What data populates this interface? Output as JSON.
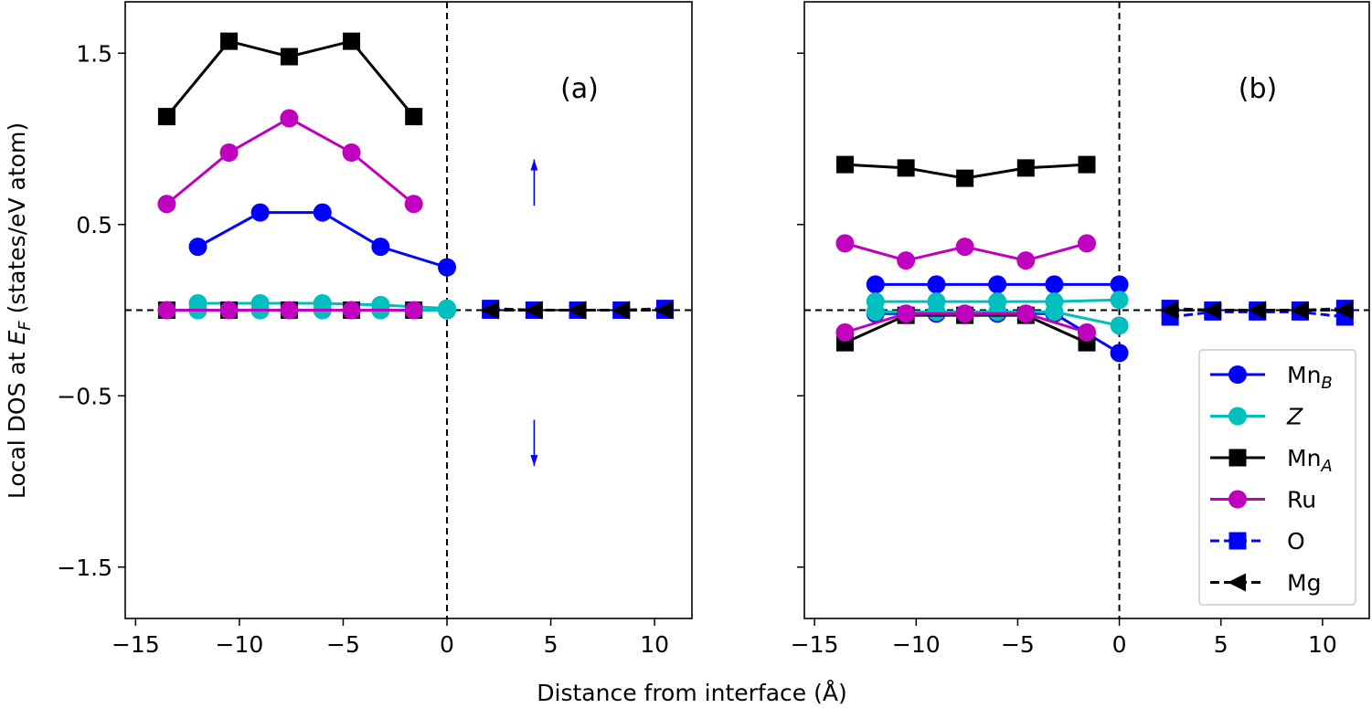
{
  "chart_data": [
    {
      "type": "line",
      "panel_label": "(a)",
      "xlabel": "Distance from interface (Å)",
      "ylabel": "Local DOS at E_F (states/eV atom)",
      "xlim": [
        -15.5,
        11.8
      ],
      "ylim": [
        -1.8,
        1.8
      ],
      "xticks": [
        -15,
        -10,
        -5,
        0,
        5,
        10
      ],
      "xtick_labels": [
        "−15",
        "−10",
        "−5",
        "0",
        "5",
        "10"
      ],
      "yticks": [
        1.5,
        0.5,
        -0.5,
        -1.5
      ],
      "ytick_labels": [
        "1.5",
        "0.5",
        "−0.5",
        "−1.5"
      ],
      "reference_lines": {
        "x": 0,
        "y": 0,
        "style": "dashed"
      },
      "annotations": [
        {
          "kind": "arrow",
          "direction": "up",
          "x": 4.2,
          "y_from": 0.61,
          "y_to": 0.88,
          "color": "#0000ff"
        },
        {
          "kind": "arrow",
          "direction": "down",
          "x": 4.2,
          "y_from": -0.64,
          "y_to": -0.91,
          "color": "#0000ff"
        }
      ],
      "series": [
        {
          "name": "Mn_B",
          "color": "#0000ff",
          "marker": "circle",
          "linestyle": "solid",
          "x": [
            -12,
            -9,
            -6,
            -3.2,
            0
          ],
          "y": [
            0.37,
            0.57,
            0.57,
            0.37,
            0.25
          ]
        },
        {
          "name": "Mn_B",
          "color": "#0000ff",
          "marker": "circle",
          "linestyle": "solid",
          "x": [
            -12,
            -9,
            -6,
            -3.2,
            0
          ],
          "y": [
            0,
            0,
            0,
            0,
            0
          ]
        },
        {
          "name": "Z",
          "color": "#00bfbf",
          "marker": "circle",
          "linestyle": "solid",
          "x": [
            -12,
            -9,
            -6,
            -3.2,
            0
          ],
          "y": [
            0.04,
            0.04,
            0.04,
            0.03,
            0.01
          ]
        },
        {
          "name": "Z",
          "color": "#00bfbf",
          "marker": "circle",
          "linestyle": "solid",
          "x": [
            -12,
            -9,
            -6,
            -3.2,
            0
          ],
          "y": [
            0,
            0,
            0,
            0,
            0
          ]
        },
        {
          "name": "Mn_A",
          "color": "#000000",
          "marker": "square",
          "linestyle": "solid",
          "x": [
            -13.5,
            -10.5,
            -7.6,
            -4.6,
            -1.6
          ],
          "y": [
            1.13,
            1.57,
            1.48,
            1.57,
            1.13
          ]
        },
        {
          "name": "Mn_A",
          "color": "#000000",
          "marker": "square",
          "linestyle": "solid",
          "x": [
            -13.5,
            -10.5,
            -7.6,
            -4.6,
            -1.6
          ],
          "y": [
            0,
            0,
            0,
            0,
            0
          ]
        },
        {
          "name": "Ru",
          "color": "#bf00bf",
          "marker": "circle",
          "linestyle": "solid",
          "x": [
            -13.5,
            -10.5,
            -7.6,
            -4.6,
            -1.6
          ],
          "y": [
            0.62,
            0.92,
            1.12,
            0.92,
            0.62
          ]
        },
        {
          "name": "Ru",
          "color": "#bf00bf",
          "marker": "circle",
          "linestyle": "solid",
          "x": [
            -13.5,
            -10.5,
            -7.6,
            -4.6,
            -1.6
          ],
          "y": [
            0,
            0,
            0,
            0,
            0
          ]
        },
        {
          "name": "O",
          "color": "#0000ff",
          "marker": "square",
          "linestyle": "dashed",
          "x": [
            2.1,
            4.2,
            6.3,
            8.4,
            10.5
          ],
          "y": [
            0.01,
            0,
            0,
            0,
            0.01
          ]
        },
        {
          "name": "O",
          "color": "#0000ff",
          "marker": "square",
          "linestyle": "dashed",
          "x": [
            2.1,
            4.2,
            6.3,
            8.4,
            10.5
          ],
          "y": [
            0,
            0,
            0,
            0,
            0
          ]
        },
        {
          "name": "Mg",
          "color": "#000000",
          "marker": "triangle-left",
          "linestyle": "dashed",
          "x": [
            2.1,
            4.2,
            6.3,
            8.4,
            10.5
          ],
          "y": [
            0,
            0,
            0,
            0,
            0
          ]
        },
        {
          "name": "Mg",
          "color": "#000000",
          "marker": "triangle-left",
          "linestyle": "dashed",
          "x": [
            2.1,
            4.2,
            6.3,
            8.4,
            10.5
          ],
          "y": [
            0,
            0,
            0,
            0,
            0
          ]
        }
      ]
    },
    {
      "type": "line",
      "panel_label": "(b)",
      "xlabel": "Distance from interface (Å)",
      "ylabel": "",
      "xlim": [
        -15.5,
        12.3
      ],
      "ylim": [
        -1.8,
        1.8
      ],
      "xticks": [
        -15,
        -10,
        -5,
        0,
        5,
        10
      ],
      "xtick_labels": [
        "−15",
        "−10",
        "−5",
        "0",
        "5",
        "10"
      ],
      "yticks": [
        1.5,
        0.5,
        -0.5,
        -1.5
      ],
      "ytick_labels": [],
      "reference_lines": {
        "x": 0,
        "y": 0,
        "style": "dashed"
      },
      "legend": {
        "placement": "lower right",
        "entries": [
          {
            "label": "Mn",
            "sub": "B",
            "italic": false,
            "color": "#0000ff",
            "marker": "circle",
            "linestyle": "solid"
          },
          {
            "label": "Z",
            "sub": "",
            "italic": true,
            "color": "#00bfbf",
            "marker": "circle",
            "linestyle": "solid"
          },
          {
            "label": "Mn",
            "sub": "A",
            "italic": false,
            "color": "#000000",
            "marker": "square",
            "linestyle": "solid"
          },
          {
            "label": "Ru",
            "sub": "",
            "italic": false,
            "color": "#bf00bf",
            "marker": "circle",
            "linestyle": "solid"
          },
          {
            "label": "O",
            "sub": "",
            "italic": false,
            "color": "#0000ff",
            "marker": "square",
            "linestyle": "dashed"
          },
          {
            "label": "Mg",
            "sub": "",
            "italic": false,
            "color": "#000000",
            "marker": "triangle-left",
            "linestyle": "dashed"
          }
        ]
      },
      "series": [
        {
          "name": "Mn_B",
          "color": "#0000ff",
          "marker": "circle",
          "linestyle": "solid",
          "x": [
            -12,
            -9,
            -6,
            -3.2,
            0
          ],
          "y": [
            0.15,
            0.15,
            0.15,
            0.15,
            0.15
          ]
        },
        {
          "name": "Mn_B",
          "color": "#0000ff",
          "marker": "circle",
          "linestyle": "solid",
          "x": [
            -12,
            -9,
            -6,
            -3.2,
            0
          ],
          "y": [
            -0.02,
            -0.02,
            -0.02,
            -0.02,
            -0.25
          ]
        },
        {
          "name": "Z",
          "color": "#00bfbf",
          "marker": "circle",
          "linestyle": "solid",
          "x": [
            -12,
            -9,
            -6,
            -3.2,
            0
          ],
          "y": [
            0.05,
            0.05,
            0.05,
            0.05,
            0.06
          ]
        },
        {
          "name": "Z",
          "color": "#00bfbf",
          "marker": "circle",
          "linestyle": "solid",
          "x": [
            -12,
            -9,
            -6,
            -3.2,
            0
          ],
          "y": [
            -0.01,
            -0.01,
            -0.01,
            -0.01,
            -0.09
          ]
        },
        {
          "name": "Mn_A",
          "color": "#000000",
          "marker": "square",
          "linestyle": "solid",
          "x": [
            -13.5,
            -10.5,
            -7.6,
            -4.6,
            -1.6
          ],
          "y": [
            0.85,
            0.83,
            0.77,
            0.83,
            0.85
          ]
        },
        {
          "name": "Mn_A",
          "color": "#000000",
          "marker": "square",
          "linestyle": "solid",
          "x": [
            -13.5,
            -10.5,
            -7.6,
            -4.6,
            -1.6
          ],
          "y": [
            -0.19,
            -0.03,
            -0.03,
            -0.03,
            -0.19
          ]
        },
        {
          "name": "Ru",
          "color": "#bf00bf",
          "marker": "circle",
          "linestyle": "solid",
          "x": [
            -13.5,
            -10.5,
            -7.6,
            -4.6,
            -1.6
          ],
          "y": [
            0.39,
            0.29,
            0.37,
            0.29,
            0.39
          ]
        },
        {
          "name": "Ru",
          "color": "#bf00bf",
          "marker": "circle",
          "linestyle": "solid",
          "x": [
            -13.5,
            -10.5,
            -7.6,
            -4.6,
            -1.6
          ],
          "y": [
            -0.13,
            -0.02,
            -0.02,
            -0.02,
            -0.13
          ]
        },
        {
          "name": "O",
          "color": "#0000ff",
          "marker": "square",
          "linestyle": "dashed",
          "x": [
            2.5,
            4.6,
            6.8,
            8.9,
            11.1
          ],
          "y": [
            0.01,
            0,
            0,
            0,
            0.01
          ]
        },
        {
          "name": "O",
          "color": "#0000ff",
          "marker": "square",
          "linestyle": "dashed",
          "x": [
            2.5,
            4.6,
            6.8,
            8.9,
            11.1
          ],
          "y": [
            -0.04,
            -0.01,
            -0.01,
            -0.01,
            -0.04
          ]
        },
        {
          "name": "Mg",
          "color": "#000000",
          "marker": "triangle-left",
          "linestyle": "dashed",
          "x": [
            2.5,
            4.6,
            6.8,
            8.9,
            11.1
          ],
          "y": [
            0,
            0,
            0,
            0,
            0
          ]
        },
        {
          "name": "Mg",
          "color": "#000000",
          "marker": "triangle-left",
          "linestyle": "dashed",
          "x": [
            2.5,
            4.6,
            6.8,
            8.9,
            11.1
          ],
          "y": [
            0,
            0,
            0,
            0,
            0
          ]
        }
      ]
    }
  ]
}
